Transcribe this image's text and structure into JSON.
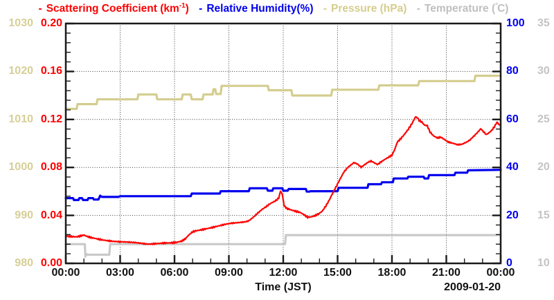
{
  "legend": {
    "items": [
      {
        "dash": "-",
        "label": "Scattering Coefficient (km",
        "sup": "-1",
        "suffix": ")",
        "color": "#ff0000"
      },
      {
        "dash": "-",
        "label": "Relative Humidity(%)",
        "color": "#0000ee"
      },
      {
        "dash": "-",
        "label": "Pressure (hPa)",
        "color": "#d4cd8e"
      },
      {
        "dash": "-",
        "label": "Temperature (",
        "deg": "°",
        "suffix": "C)",
        "color": "#c0c0c0"
      }
    ]
  },
  "chart_data": {
    "type": "line",
    "title": "",
    "x": {
      "label": "Time (JST)",
      "date": "2009-01-20",
      "range_hours": [
        0,
        24
      ],
      "major_tick_hours": 3,
      "minor_tick_hours": 1,
      "tick_labels": [
        "00:00",
        "03:00",
        "06:00",
        "09:00",
        "12:00",
        "15:00",
        "18:00",
        "21:00",
        "00:00"
      ]
    },
    "grid": {
      "style": "dotted",
      "color": "#000000"
    },
    "y_axes": [
      {
        "id": "scattering",
        "name": "Scattering Coefficient (km-1)",
        "color": "#ff0000",
        "range": [
          0,
          0.2
        ],
        "major": 0.04,
        "minor": 0.008,
        "column": "inner-left",
        "tick_labels": [
          "0.00",
          "0.04",
          "0.08",
          "0.12",
          "0.16",
          "0.20"
        ]
      },
      {
        "id": "rh",
        "name": "Relative Humidity (%)",
        "color": "#0000ee",
        "range": [
          0,
          100
        ],
        "major": 20,
        "minor": 4,
        "column": "inner-right",
        "tick_labels": [
          "0",
          "20",
          "40",
          "60",
          "80",
          "100"
        ]
      },
      {
        "id": "pressure",
        "name": "Pressure (hPa)",
        "color": "#d6cf96",
        "range": [
          980,
          1030
        ],
        "major": 10,
        "minor": 2,
        "column": "outer-left",
        "tick_labels": [
          "980",
          "990",
          "1000",
          "1010",
          "1020",
          "1030"
        ]
      },
      {
        "id": "temperature",
        "name": "Temperature (C)",
        "color": "#c4c4c4",
        "range": [
          10,
          35
        ],
        "major": 5,
        "minor": 1,
        "column": "outer-right",
        "tick_labels": [
          "10",
          "15",
          "20",
          "25",
          "30",
          "35"
        ]
      }
    ],
    "series": [
      {
        "name": "Scattering Coefficient",
        "axis": "scattering",
        "color": "#ff0000",
        "width": 2.2,
        "z": 4,
        "noise": 0.0007,
        "points": [
          [
            0,
            0.0228
          ],
          [
            0.3,
            0.0224
          ],
          [
            0.6,
            0.0221
          ],
          [
            0.85,
            0.023
          ],
          [
            1.0,
            0.0236
          ],
          [
            1.15,
            0.0226
          ],
          [
            1.4,
            0.0215
          ],
          [
            1.7,
            0.0205
          ],
          [
            2.0,
            0.0196
          ],
          [
            2.3,
            0.0189
          ],
          [
            2.6,
            0.0184
          ],
          [
            2.9,
            0.0181
          ],
          [
            3.2,
            0.0179
          ],
          [
            3.5,
            0.0177
          ],
          [
            3.8,
            0.0174
          ],
          [
            4.1,
            0.0169
          ],
          [
            4.4,
            0.0162
          ],
          [
            4.6,
            0.016
          ],
          [
            4.9,
            0.0164
          ],
          [
            5.2,
            0.0167
          ],
          [
            5.5,
            0.017
          ],
          [
            5.8,
            0.0171
          ],
          [
            6.1,
            0.0175
          ],
          [
            6.4,
            0.0186
          ],
          [
            6.6,
            0.0205
          ],
          [
            6.8,
            0.0238
          ],
          [
            7.0,
            0.0263
          ],
          [
            7.2,
            0.0272
          ],
          [
            7.5,
            0.028
          ],
          [
            7.8,
            0.029
          ],
          [
            8.1,
            0.03
          ],
          [
            8.4,
            0.0311
          ],
          [
            8.7,
            0.0322
          ],
          [
            9.0,
            0.0332
          ],
          [
            9.3,
            0.0337
          ],
          [
            9.6,
            0.0341
          ],
          [
            9.9,
            0.0346
          ],
          [
            10.1,
            0.0355
          ],
          [
            10.35,
            0.0385
          ],
          [
            10.6,
            0.042
          ],
          [
            10.85,
            0.0452
          ],
          [
            11.05,
            0.0472
          ],
          [
            11.25,
            0.0495
          ],
          [
            11.45,
            0.0512
          ],
          [
            11.6,
            0.0524
          ],
          [
            11.75,
            0.0545
          ],
          [
            11.85,
            0.0603
          ],
          [
            11.95,
            0.0575
          ],
          [
            12.05,
            0.048
          ],
          [
            12.2,
            0.0458
          ],
          [
            12.45,
            0.0445
          ],
          [
            12.7,
            0.0434
          ],
          [
            12.95,
            0.0424
          ],
          [
            13.15,
            0.0405
          ],
          [
            13.35,
            0.0384
          ],
          [
            13.55,
            0.0388
          ],
          [
            13.75,
            0.0398
          ],
          [
            13.95,
            0.0412
          ],
          [
            14.15,
            0.0435
          ],
          [
            14.35,
            0.0478
          ],
          [
            14.55,
            0.053
          ],
          [
            14.75,
            0.0592
          ],
          [
            14.95,
            0.0648
          ],
          [
            15.15,
            0.0706
          ],
          [
            15.35,
            0.0762
          ],
          [
            15.55,
            0.0798
          ],
          [
            15.75,
            0.0822
          ],
          [
            15.9,
            0.084
          ],
          [
            16.1,
            0.0828
          ],
          [
            16.3,
            0.0801
          ],
          [
            16.5,
            0.0824
          ],
          [
            16.7,
            0.0845
          ],
          [
            16.85,
            0.0853
          ],
          [
            17.0,
            0.0841
          ],
          [
            17.2,
            0.0824
          ],
          [
            17.4,
            0.0846
          ],
          [
            17.6,
            0.0866
          ],
          [
            17.8,
            0.0884
          ],
          [
            18.0,
            0.0902
          ],
          [
            18.15,
            0.0948
          ],
          [
            18.3,
            0.1012
          ],
          [
            18.5,
            0.1042
          ],
          [
            18.7,
            0.1078
          ],
          [
            18.9,
            0.1118
          ],
          [
            19.1,
            0.1165
          ],
          [
            19.3,
            0.1222
          ],
          [
            19.4,
            0.1215
          ],
          [
            19.5,
            0.1192
          ],
          [
            19.65,
            0.1178
          ],
          [
            19.8,
            0.1152
          ],
          [
            19.95,
            0.1148
          ],
          [
            20.1,
            0.1095
          ],
          [
            20.3,
            0.1062
          ],
          [
            20.5,
            0.1046
          ],
          [
            20.7,
            0.1052
          ],
          [
            20.9,
            0.1032
          ],
          [
            21.1,
            0.1012
          ],
          [
            21.35,
            0.1002
          ],
          [
            21.6,
            0.099
          ],
          [
            21.85,
            0.0992
          ],
          [
            22.1,
            0.101
          ],
          [
            22.3,
            0.1028
          ],
          [
            22.5,
            0.1058
          ],
          [
            22.7,
            0.1088
          ],
          [
            22.9,
            0.1122
          ],
          [
            23.05,
            0.1098
          ],
          [
            23.2,
            0.1074
          ],
          [
            23.35,
            0.1088
          ],
          [
            23.5,
            0.1108
          ],
          [
            23.65,
            0.1138
          ],
          [
            23.8,
            0.1178
          ],
          [
            23.9,
            0.1158
          ],
          [
            24,
            0.115
          ]
        ]
      },
      {
        "name": "Relative Humidity",
        "axis": "rh",
        "color": "#0000ee",
        "width": 3.2,
        "z": 3,
        "noise": 0,
        "points": [
          [
            0,
            27.2
          ],
          [
            0.4,
            27.2
          ],
          [
            0.45,
            26.4
          ],
          [
            0.7,
            26.4
          ],
          [
            0.75,
            27.2
          ],
          [
            0.9,
            27.2
          ],
          [
            0.95,
            26.4
          ],
          [
            1.2,
            26.4
          ],
          [
            1.25,
            27.2
          ],
          [
            1.5,
            27.2
          ],
          [
            1.55,
            26.6
          ],
          [
            1.8,
            26.6
          ],
          [
            1.9,
            28.2
          ],
          [
            2.0,
            27.7
          ],
          [
            2.9,
            27.7
          ],
          [
            3.0,
            28.0
          ],
          [
            6.9,
            28.0
          ],
          [
            6.95,
            29.1
          ],
          [
            8.5,
            29.1
          ],
          [
            8.55,
            30.1
          ],
          [
            10.1,
            30.1
          ],
          [
            10.15,
            31.3
          ],
          [
            11.1,
            31.3
          ],
          [
            11.15,
            30.3
          ],
          [
            11.4,
            30.3
          ],
          [
            11.45,
            31.3
          ],
          [
            11.95,
            31.3
          ],
          [
            12.0,
            30.3
          ],
          [
            12.25,
            30.3
          ],
          [
            12.3,
            31.0
          ],
          [
            13.25,
            31.0
          ],
          [
            13.3,
            29.9
          ],
          [
            13.45,
            29.9
          ],
          [
            13.5,
            30.1
          ],
          [
            15.0,
            30.1
          ],
          [
            15.05,
            31.5
          ],
          [
            16.65,
            31.5
          ],
          [
            16.7,
            33.0
          ],
          [
            17.4,
            33.0
          ],
          [
            17.45,
            33.8
          ],
          [
            18.05,
            33.8
          ],
          [
            18.1,
            35.4
          ],
          [
            18.85,
            35.4
          ],
          [
            18.9,
            36.1
          ],
          [
            19.75,
            36.1
          ],
          [
            19.8,
            35.4
          ],
          [
            20.0,
            35.4
          ],
          [
            20.05,
            36.8
          ],
          [
            21.45,
            36.8
          ],
          [
            21.5,
            37.8
          ],
          [
            22.15,
            37.8
          ],
          [
            22.2,
            38.8
          ],
          [
            24,
            39.0
          ]
        ]
      },
      {
        "name": "Pressure",
        "axis": "pressure",
        "color": "#d4cd8e",
        "width": 3.2,
        "z": 2,
        "noise": 0,
        "points": [
          [
            0,
            1012.2
          ],
          [
            0.6,
            1012.2
          ],
          [
            0.65,
            1013.2
          ],
          [
            1.7,
            1013.2
          ],
          [
            1.75,
            1014.2
          ],
          [
            3.95,
            1014.2
          ],
          [
            4.0,
            1015.2
          ],
          [
            5.0,
            1015.2
          ],
          [
            5.05,
            1014.2
          ],
          [
            6.4,
            1014.2
          ],
          [
            6.45,
            1015.2
          ],
          [
            6.9,
            1015.2
          ],
          [
            6.95,
            1014.2
          ],
          [
            7.55,
            1014.2
          ],
          [
            7.6,
            1015.2
          ],
          [
            8.1,
            1015.2
          ],
          [
            8.15,
            1016.3
          ],
          [
            8.25,
            1016.3
          ],
          [
            8.3,
            1015.3
          ],
          [
            8.55,
            1015.3
          ],
          [
            8.6,
            1017.0
          ],
          [
            11.15,
            1017.0
          ],
          [
            11.2,
            1016.1
          ],
          [
            12.45,
            1016.1
          ],
          [
            12.5,
            1015.0
          ],
          [
            14.65,
            1015.0
          ],
          [
            14.7,
            1016.2
          ],
          [
            17.25,
            1016.2
          ],
          [
            17.3,
            1017.1
          ],
          [
            19.45,
            1017.1
          ],
          [
            19.5,
            1018.0
          ],
          [
            22.55,
            1018.0
          ],
          [
            22.6,
            1019.1
          ],
          [
            24,
            1019.1
          ]
        ]
      },
      {
        "name": "Temperature",
        "axis": "temperature",
        "color": "#c9c9c9",
        "width": 3.2,
        "z": 1,
        "noise": 0,
        "points": [
          [
            0,
            12.0
          ],
          [
            1.05,
            12.0
          ],
          [
            1.08,
            10.7
          ],
          [
            1.12,
            11.0
          ],
          [
            1.2,
            10.9
          ],
          [
            2.4,
            10.9
          ],
          [
            2.45,
            12.0
          ],
          [
            12.1,
            12.0
          ],
          [
            12.15,
            12.95
          ],
          [
            24,
            12.95
          ]
        ]
      }
    ]
  }
}
